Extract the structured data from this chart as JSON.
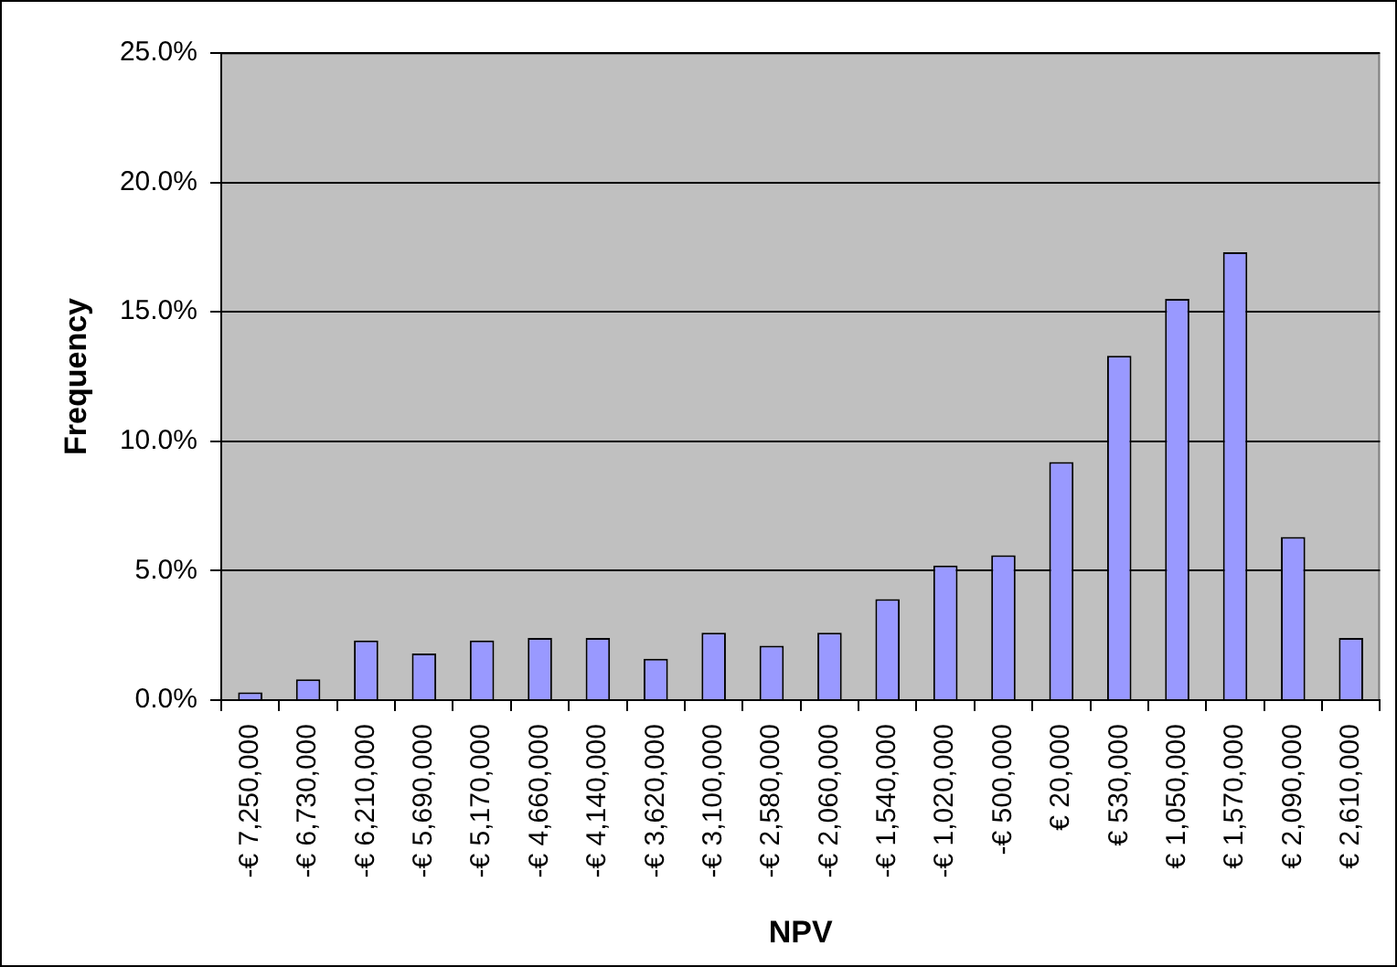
{
  "chart_data": {
    "type": "bar",
    "xlabel": "NPV",
    "ylabel": "Frequency",
    "categories": [
      "-€ 7,250,000",
      "-€ 6,730,000",
      "-€ 6,210,000",
      "-€ 5,690,000",
      "-€ 5,170,000",
      "-€ 4,660,000",
      "-€ 4,140,000",
      "-€ 3,620,000",
      "-€ 3,100,000",
      "-€ 2,580,000",
      "-€ 2,060,000",
      "-€ 1,540,000",
      "-€ 1,020,000",
      "-€ 500,000",
      "€ 20,000",
      "€ 530,000",
      "€ 1,050,000",
      "€ 1,570,000",
      "€ 2,090,000",
      "€ 2,610,000"
    ],
    "values": [
      0.3,
      0.8,
      2.3,
      1.8,
      2.3,
      2.4,
      2.4,
      1.6,
      2.6,
      2.1,
      2.6,
      3.9,
      5.2,
      5.6,
      9.2,
      13.3,
      15.5,
      17.3,
      6.3,
      2.4
    ],
    "color": "#9999ff",
    "ylim": [
      0,
      25
    ],
    "yticks": [
      {
        "value": 0,
        "label": "0.0%"
      },
      {
        "value": 5,
        "label": "5.0%"
      },
      {
        "value": 10,
        "label": "10.0%"
      },
      {
        "value": 15,
        "label": "15.0%"
      },
      {
        "value": 20,
        "label": "20.0%"
      },
      {
        "value": 25,
        "label": "25.0%"
      }
    ],
    "grid": "y"
  }
}
